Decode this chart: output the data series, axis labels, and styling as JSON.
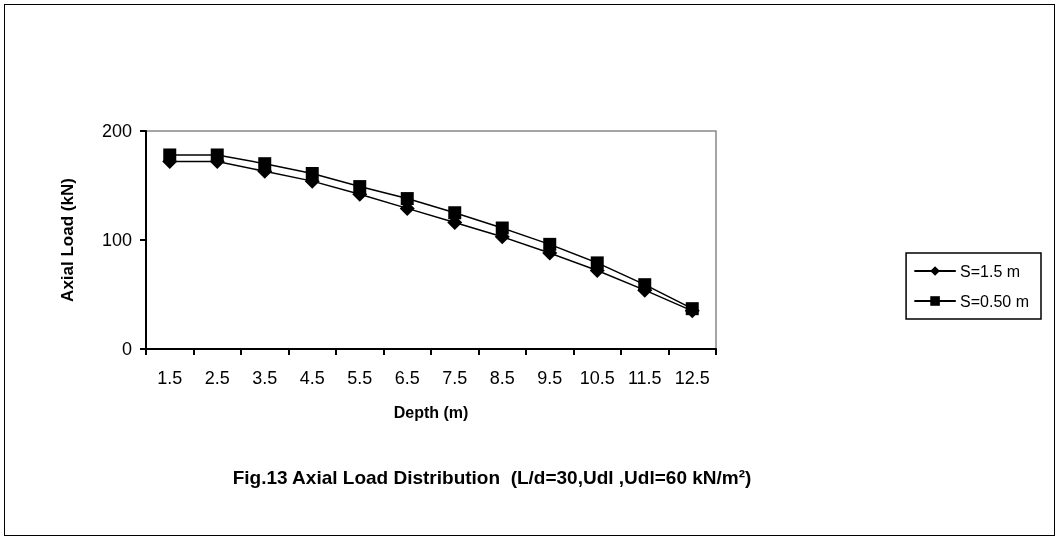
{
  "chart_data": {
    "type": "line",
    "title": "Fig.13 Axial Load Distribution  (L/d=30,Udl ,Udl=60 kN/m²)",
    "xlabel": "Depth (m)",
    "ylabel": "Axial Load (kN)",
    "categories": [
      "1.5",
      "2.5",
      "3.5",
      "4.5",
      "5.5",
      "6.5",
      "7.5",
      "8.5",
      "9.5",
      "10.5",
      "11.5",
      "12.5"
    ],
    "series": [
      {
        "name": "S=1.5 m",
        "color": "#000000",
        "marker": "diamond",
        "values": [
          172,
          172,
          163,
          154,
          142,
          129,
          116,
          103,
          88,
          72,
          54,
          35
        ]
      },
      {
        "name": "S=0.50 m",
        "color": "#000000",
        "marker": "square",
        "values": [
          178,
          178,
          170,
          161,
          149,
          138,
          125,
          111,
          96,
          79,
          59,
          37
        ]
      }
    ],
    "ylim": [
      0,
      200
    ],
    "yticks": [
      0,
      100,
      200
    ],
    "grid": false,
    "legend": "right",
    "line_style": "solid"
  }
}
